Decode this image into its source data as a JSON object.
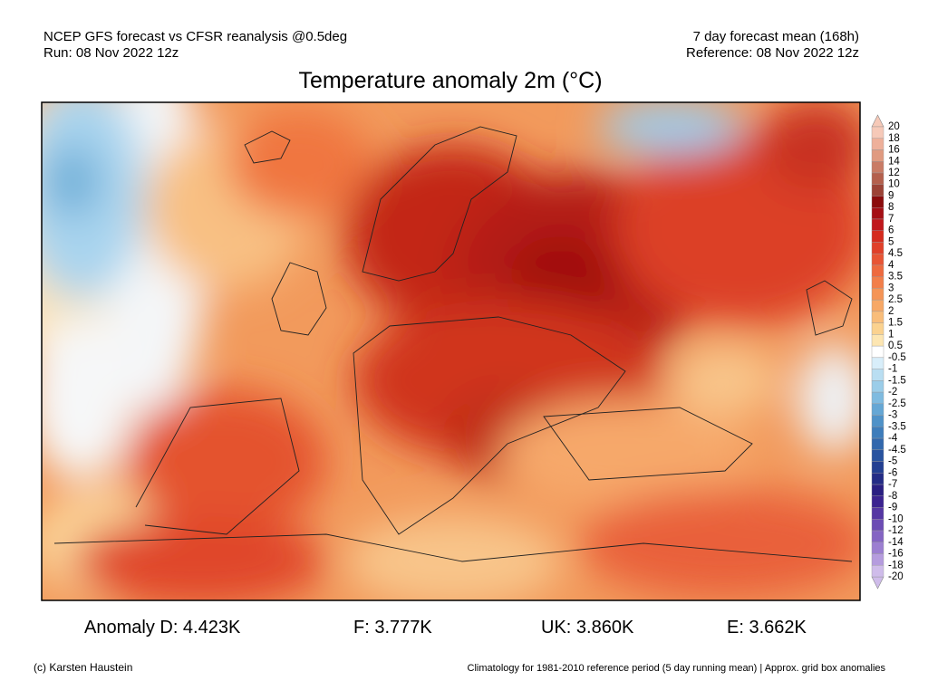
{
  "header": {
    "left_line1": "NCEP GFS forecast vs CFSR reanalysis @0.5deg",
    "left_line2": "Run: 08 Nov 2022 12z",
    "right_line1": "7 day forecast mean (168h)",
    "right_line2": "Reference: 08 Nov 2022 12z",
    "title": "Temperature anomaly 2m (°C)"
  },
  "colorbar": {
    "labels": [
      20,
      18,
      16,
      14,
      12,
      10,
      9,
      8,
      7,
      6,
      5,
      4.5,
      4,
      3.5,
      3,
      2.5,
      2,
      1.5,
      1,
      0.5,
      -0.5,
      -1,
      -1.5,
      -2,
      -2.5,
      -3,
      -3.5,
      -4,
      -4.5,
      -5,
      -6,
      -7,
      -8,
      -9,
      -10,
      -12,
      -14,
      -16,
      -18,
      -20
    ],
    "colors": [
      "#f6c9b8",
      "#eeb09a",
      "#e09a80",
      "#c97b65",
      "#b4604d",
      "#9c4336",
      "#8b0c0c",
      "#a50f15",
      "#c0171c",
      "#d52b1e",
      "#e0402a",
      "#e85535",
      "#ee6a3f",
      "#f27f4a",
      "#f59456",
      "#f7a866",
      "#f9bd7a",
      "#fbd28f",
      "#fde6b2",
      "#ffffff",
      "#d8eefa",
      "#b9def2",
      "#9bcde9",
      "#7fbbe0",
      "#65a7d5",
      "#4f92c8",
      "#3e7dbb",
      "#3268ad",
      "#28539f",
      "#233f92",
      "#242c86",
      "#2a1f82",
      "#3b2390",
      "#5537a3",
      "#6c4cb4",
      "#8464c3",
      "#9c7fd1",
      "#b59cde",
      "#cfbcea"
    ]
  },
  "stats": [
    "Anomaly D: 4.423K",
    "F: 3.777K",
    "UK: 3.860K",
    "E: 3.662K"
  ],
  "footer": {
    "left": "(c) Karsten Haustein",
    "right": "Climatology for 1981-2010 reference period (5 day running mean) | Approx. grid box anomalies"
  }
}
